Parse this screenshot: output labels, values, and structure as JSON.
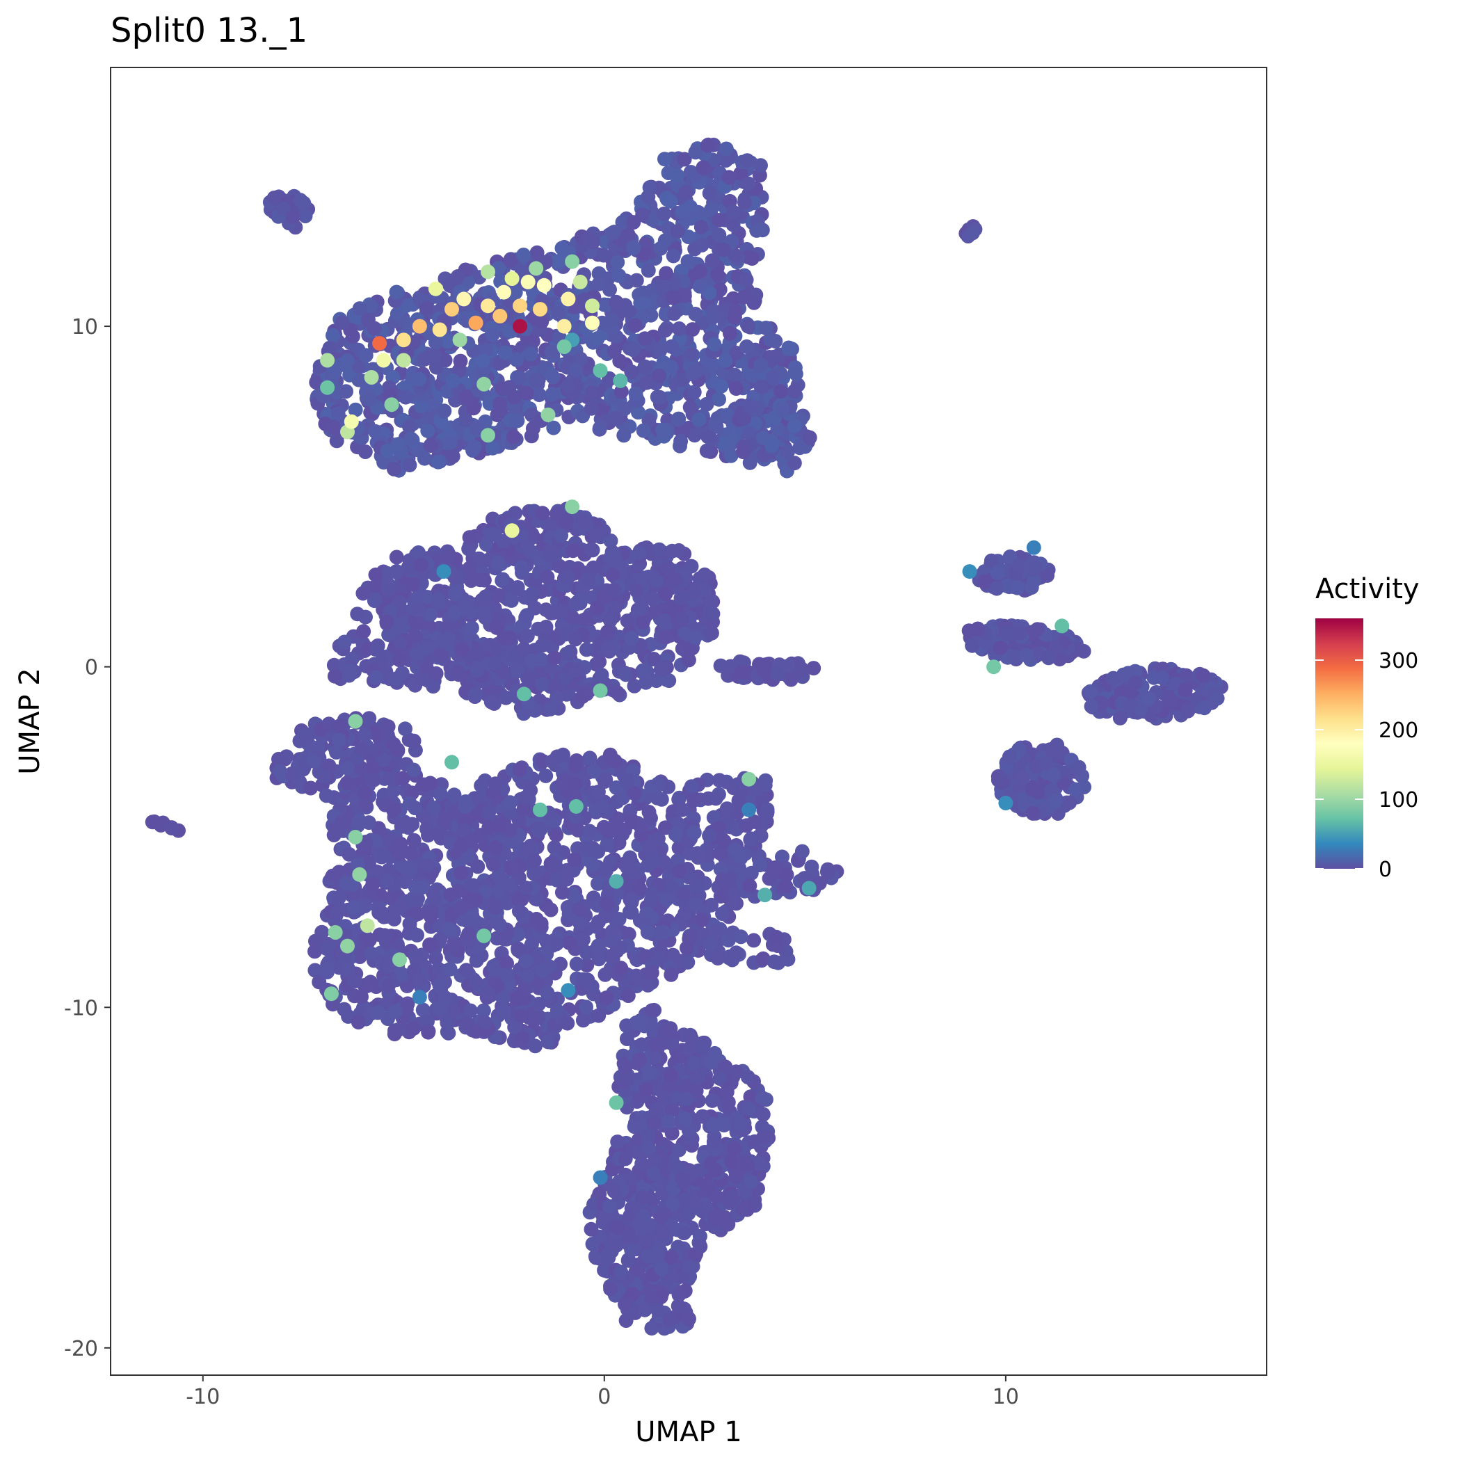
{
  "chart_data": {
    "type": "scatter",
    "title": "Split0 13._1",
    "xlabel": "UMAP 1",
    "ylabel": "UMAP 2",
    "xlim": [
      -12.3,
      16.5
    ],
    "ylim": [
      -20.8,
      17.6
    ],
    "x_ticks": [
      -10,
      0,
      10
    ],
    "y_ticks": [
      -20,
      -10,
      0,
      10
    ],
    "x_tick_labels": [
      "-10",
      "0",
      "10"
    ],
    "y_tick_labels": [
      "-20",
      "-10",
      "0",
      "10"
    ],
    "grid": false,
    "legend": {
      "title": "Activity",
      "placement": "right",
      "range": [
        0,
        360
      ],
      "ticks": [
        0,
        100,
        200,
        300
      ],
      "tick_labels": [
        "0",
        "100",
        "200",
        "300"
      ],
      "colormap": "Spectral (reversed)",
      "colors": [
        "#5E4FA2",
        "#3288BD",
        "#66C2A5",
        "#ABDDA4",
        "#E6F598",
        "#FFFFBF",
        "#FEE08B",
        "#FDAE61",
        "#F46D43",
        "#D53E4F",
        "#9E0142"
      ]
    },
    "clusters": [
      {
        "name": "top",
        "shape": "poly",
        "poly": [
          [
            -6.6,
            10.2
          ],
          [
            -5.5,
            10.9
          ],
          [
            -3,
            11.9
          ],
          [
            -1,
            12.4
          ],
          [
            0.8,
            13.4
          ],
          [
            1.6,
            15.2
          ],
          [
            2.7,
            15.4
          ],
          [
            3.9,
            14.8
          ],
          [
            4,
            13
          ],
          [
            3.7,
            11.3
          ],
          [
            4.1,
            10
          ],
          [
            4.8,
            9.3
          ],
          [
            4.9,
            7.6
          ],
          [
            5.2,
            6.6
          ],
          [
            4.6,
            5.7
          ],
          [
            3.2,
            6.1
          ],
          [
            1.3,
            6.6
          ],
          [
            -1,
            7.1
          ],
          [
            -3.5,
            6.1
          ],
          [
            -5.3,
            5.7
          ],
          [
            -6.6,
            6.4
          ],
          [
            -7.2,
            7.6
          ],
          [
            -7.2,
            8.9
          ]
        ],
        "n": 1400,
        "baseValue": 6
      },
      {
        "name": "top-small-left",
        "shape": "ellipse",
        "cx": -7.9,
        "cy": 13.4,
        "rx": 0.55,
        "ry": 0.5,
        "angle": -40,
        "n": 30,
        "baseValue": 4
      },
      {
        "name": "top-right-dot",
        "shape": "ellipse",
        "cx": 9.1,
        "cy": 12.8,
        "rx": 0.2,
        "ry": 0.2,
        "angle": 0,
        "n": 6,
        "baseValue": 3
      },
      {
        "name": "middle",
        "shape": "poly",
        "poly": [
          [
            -6.8,
            0
          ],
          [
            -6.3,
            1.5
          ],
          [
            -5.6,
            3.2
          ],
          [
            -3.8,
            3.5
          ],
          [
            -2.6,
            4.5
          ],
          [
            -0.6,
            4.7
          ],
          [
            0.4,
            3.6
          ],
          [
            2,
            3.4
          ],
          [
            2.7,
            2.6
          ],
          [
            2.8,
            1
          ],
          [
            2.2,
            0.3
          ],
          [
            1.7,
            -0.4
          ],
          [
            0.5,
            -0.8
          ],
          [
            -0.9,
            -1.3
          ],
          [
            -2,
            -1.4
          ],
          [
            -3.8,
            -0.7
          ],
          [
            -5.6,
            -0.5
          ],
          [
            -6.7,
            -0.4
          ]
        ],
        "n": 900,
        "baseValue": 3
      },
      {
        "name": "middle-tail",
        "shape": "ellipse",
        "cx": 4.1,
        "cy": -0.1,
        "rx": 1.5,
        "ry": 0.3,
        "angle": 0,
        "n": 45,
        "baseValue": 2
      },
      {
        "name": "lower",
        "shape": "poly",
        "poly": [
          [
            -7.2,
            -9.2
          ],
          [
            -6.6,
            -10.3
          ],
          [
            -5.3,
            -10.8
          ],
          [
            -3.3,
            -10.8
          ],
          [
            -1.8,
            -11.3
          ],
          [
            -0.5,
            -10.6
          ],
          [
            1,
            -9.4
          ],
          [
            2.4,
            -8.7
          ],
          [
            4.6,
            -8.7
          ],
          [
            4.5,
            -7.7
          ],
          [
            3,
            -7.6
          ],
          [
            3.5,
            -6.8
          ],
          [
            5.4,
            -6.6
          ],
          [
            5.8,
            -6
          ],
          [
            4.9,
            -5.3
          ],
          [
            3.6,
            -5.6
          ],
          [
            4.2,
            -4.6
          ],
          [
            4.1,
            -3.3
          ],
          [
            2.6,
            -3.2
          ],
          [
            1.1,
            -3.3
          ],
          [
            0.6,
            -2.6
          ],
          [
            -1.5,
            -2.5
          ],
          [
            -3,
            -3.3
          ],
          [
            -4.5,
            -3.4
          ],
          [
            -4.5,
            -2
          ],
          [
            -6.1,
            -1.3
          ],
          [
            -7.4,
            -1.7
          ],
          [
            -8.1,
            -2.3
          ],
          [
            -8.2,
            -3.4
          ],
          [
            -7,
            -3.9
          ],
          [
            -6.8,
            -5.2
          ],
          [
            -6.9,
            -7.1
          ],
          [
            -7.3,
            -8.1
          ]
        ],
        "n": 1600,
        "baseValue": 3
      },
      {
        "name": "bottom",
        "shape": "poly",
        "poly": [
          [
            0.5,
            -10.5
          ],
          [
            1.2,
            -10
          ],
          [
            2.1,
            -10.6
          ],
          [
            3,
            -11.6
          ],
          [
            4,
            -12.2
          ],
          [
            4.1,
            -13.8
          ],
          [
            3.8,
            -15.8
          ],
          [
            3.1,
            -16.4
          ],
          [
            2.4,
            -17
          ],
          [
            2.1,
            -18.1
          ],
          [
            2.2,
            -19.3
          ],
          [
            1.5,
            -19.6
          ],
          [
            0.6,
            -19.4
          ],
          [
            0,
            -18.5
          ],
          [
            -0.3,
            -17
          ],
          [
            -0.4,
            -15.7
          ],
          [
            0.1,
            -14.6
          ],
          [
            0.4,
            -13.5
          ],
          [
            0.3,
            -11.8
          ]
        ],
        "n": 650,
        "baseValue": 3
      },
      {
        "name": "far-left-dots",
        "shape": "ellipse",
        "cx": -10.9,
        "cy": -4.7,
        "rx": 0.4,
        "ry": 0.1,
        "angle": -25,
        "n": 8,
        "baseValue": 2
      },
      {
        "name": "right-top",
        "shape": "ellipse",
        "cx": 10.2,
        "cy": 2.7,
        "rx": 0.9,
        "ry": 0.55,
        "angle": 0,
        "n": 70,
        "baseValue": 4
      },
      {
        "name": "right-mid",
        "shape": "ellipse",
        "cx": 10.4,
        "cy": 0.7,
        "rx": 1.6,
        "ry": 0.5,
        "angle": -5,
        "n": 120,
        "baseValue": 4
      },
      {
        "name": "right-low",
        "shape": "ellipse",
        "cx": 10.9,
        "cy": -3.3,
        "rx": 1.1,
        "ry": 1.1,
        "angle": 0,
        "n": 150,
        "baseValue": 4
      },
      {
        "name": "right-arm",
        "shape": "ellipse",
        "cx": 13.7,
        "cy": -0.8,
        "rx": 1.7,
        "ry": 0.75,
        "angle": 5,
        "n": 160,
        "baseValue": 4
      }
    ],
    "highlighted_points": [
      {
        "x": -2.1,
        "y": 10.0,
        "value": 350
      },
      {
        "x": -5.6,
        "y": 9.5,
        "value": 290
      },
      {
        "x": -3.2,
        "y": 10.1,
        "value": 255
      },
      {
        "x": -4.6,
        "y": 10.0,
        "value": 240
      },
      {
        "x": -2.6,
        "y": 10.3,
        "value": 235
      },
      {
        "x": -3.8,
        "y": 10.5,
        "value": 230
      },
      {
        "x": -2.1,
        "y": 10.6,
        "value": 225
      },
      {
        "x": -1.6,
        "y": 10.5,
        "value": 220
      },
      {
        "x": -5.0,
        "y": 9.6,
        "value": 215
      },
      {
        "x": -4.1,
        "y": 9.9,
        "value": 210
      },
      {
        "x": -2.9,
        "y": 10.6,
        "value": 205
      },
      {
        "x": -1.0,
        "y": 10.0,
        "value": 200
      },
      {
        "x": -0.9,
        "y": 10.8,
        "value": 195
      },
      {
        "x": -3.5,
        "y": 10.8,
        "value": 190
      },
      {
        "x": -2.5,
        "y": 11.0,
        "value": 185
      },
      {
        "x": -1.5,
        "y": 11.2,
        "value": 180
      },
      {
        "x": -0.3,
        "y": 10.1,
        "value": 175
      },
      {
        "x": -1.9,
        "y": 11.3,
        "value": 170
      },
      {
        "x": -6.3,
        "y": 7.2,
        "value": 165
      },
      {
        "x": -5.5,
        "y": 9.0,
        "value": 160
      },
      {
        "x": -4.2,
        "y": 11.1,
        "value": 150
      },
      {
        "x": -2.3,
        "y": 11.4,
        "value": 145
      },
      {
        "x": -2.3,
        "y": 4.0,
        "value": 150
      },
      {
        "x": -0.3,
        "y": 10.6,
        "value": 130
      },
      {
        "x": -0.6,
        "y": 11.3,
        "value": 125
      },
      {
        "x": -5.0,
        "y": 9.0,
        "value": 120
      },
      {
        "x": -6.9,
        "y": 9.0,
        "value": 110
      },
      {
        "x": -6.4,
        "y": 6.9,
        "value": 120
      },
      {
        "x": -2.9,
        "y": 11.6,
        "value": 115
      },
      {
        "x": -5.8,
        "y": 8.5,
        "value": 110
      },
      {
        "x": -3.6,
        "y": 9.6,
        "value": 100
      },
      {
        "x": -3.0,
        "y": 8.3,
        "value": 95
      },
      {
        "x": -1.7,
        "y": 11.7,
        "value": 100
      },
      {
        "x": -0.8,
        "y": 11.9,
        "value": 90
      },
      {
        "x": -2.9,
        "y": 6.8,
        "value": 90
      },
      {
        "x": -1.4,
        "y": 7.4,
        "value": 95
      },
      {
        "x": -5.3,
        "y": 7.7,
        "value": 90
      },
      {
        "x": -1.0,
        "y": 9.4,
        "value": 80
      },
      {
        "x": -0.1,
        "y": 8.7,
        "value": 70
      },
      {
        "x": 0.4,
        "y": 8.4,
        "value": 65
      },
      {
        "x": -6.9,
        "y": 8.2,
        "value": 75
      },
      {
        "x": -0.8,
        "y": 4.7,
        "value": 90
      },
      {
        "x": -6.2,
        "y": -1.6,
        "value": 90
      },
      {
        "x": -6.2,
        "y": -5.0,
        "value": 90
      },
      {
        "x": -6.1,
        "y": -6.1,
        "value": 95
      },
      {
        "x": -5.9,
        "y": -7.6,
        "value": 120
      },
      {
        "x": -5.1,
        "y": -8.6,
        "value": 90
      },
      {
        "x": -6.4,
        "y": -8.2,
        "value": 95
      },
      {
        "x": -6.7,
        "y": -7.8,
        "value": 90
      },
      {
        "x": -6.8,
        "y": -9.6,
        "value": 85
      },
      {
        "x": -3.0,
        "y": -7.9,
        "value": 80
      },
      {
        "x": 3.6,
        "y": -3.3,
        "value": 90
      },
      {
        "x": -0.7,
        "y": -4.1,
        "value": 70
      },
      {
        "x": -1.6,
        "y": -4.2,
        "value": 70
      },
      {
        "x": 0.3,
        "y": -6.3,
        "value": 60
      },
      {
        "x": 4.0,
        "y": -6.7,
        "value": 60
      },
      {
        "x": 5.1,
        "y": -6.5,
        "value": 55
      },
      {
        "x": -2.0,
        "y": -0.8,
        "value": 70
      },
      {
        "x": -0.1,
        "y": -0.7,
        "value": 80
      },
      {
        "x": 0.3,
        "y": -12.8,
        "value": 75
      },
      {
        "x": -4.0,
        "y": 2.8,
        "value": 40
      },
      {
        "x": -3.8,
        "y": -2.8,
        "value": 70
      },
      {
        "x": 9.7,
        "y": 0.0,
        "value": 80
      },
      {
        "x": 11.4,
        "y": 1.2,
        "value": 70
      },
      {
        "x": 9.1,
        "y": 2.8,
        "value": 40
      },
      {
        "x": 10.7,
        "y": 3.5,
        "value": 30
      },
      {
        "x": 10.0,
        "y": -4.0,
        "value": 40
      },
      {
        "x": -0.8,
        "y": 9.6,
        "value": 50
      },
      {
        "x": -0.1,
        "y": -15.0,
        "value": 30
      },
      {
        "x": 3.6,
        "y": -4.2,
        "value": 30
      },
      {
        "x": -0.9,
        "y": -9.5,
        "value": 40
      },
      {
        "x": -4.6,
        "y": -9.7,
        "value": 30
      }
    ]
  }
}
